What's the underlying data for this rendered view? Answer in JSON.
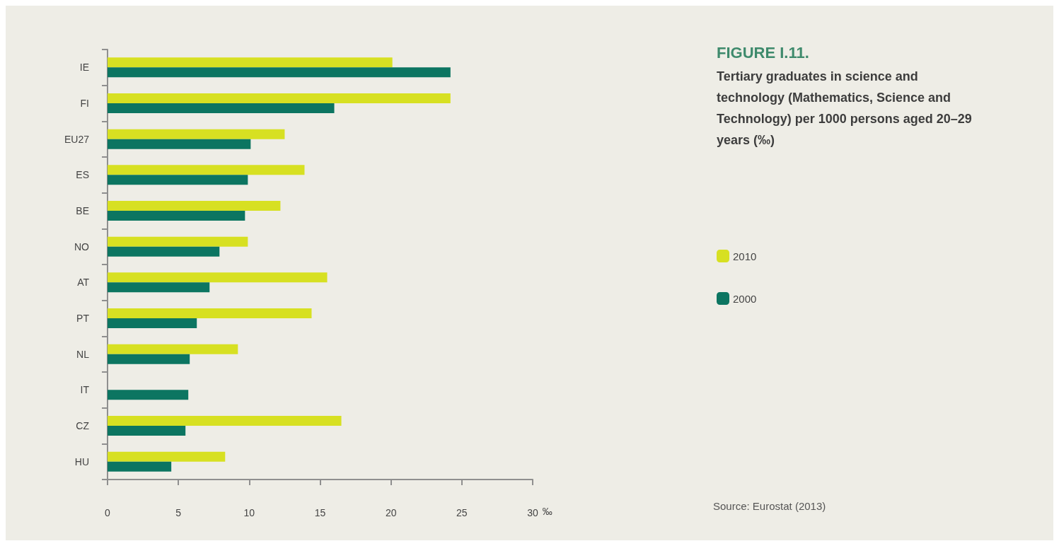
{
  "chart_data": {
    "type": "bar",
    "orientation": "horizontal",
    "title": "FIGURE I.11.",
    "subtitle": "Tertiary graduates in science and technology (Mathematics, Science and Technology) per 1000 persons aged 20–29 years (‰)",
    "xlabel": "‰",
    "categories": [
      "IE",
      "FI",
      "EU27",
      "ES",
      "BE",
      "NO",
      "AT",
      "PT",
      "NL",
      "IT",
      "CZ",
      "HU"
    ],
    "series": [
      {
        "name": "2010",
        "color": "#d7e022",
        "values": [
          20.1,
          24.2,
          12.5,
          13.9,
          12.2,
          9.9,
          15.5,
          14.4,
          9.2,
          null,
          16.5,
          8.3
        ]
      },
      {
        "name": "2000",
        "color": "#0c7561",
        "values": [
          24.2,
          16.0,
          10.1,
          9.9,
          9.7,
          7.9,
          7.2,
          6.3,
          5.8,
          5.7,
          5.5,
          4.5
        ]
      }
    ],
    "xlim": [
      0,
      30
    ],
    "xticks": [
      0,
      5,
      10,
      15,
      20,
      25,
      30
    ],
    "grid": false,
    "legend": "right",
    "annotations": [
      "Source: Eurostat (2013)"
    ]
  }
}
